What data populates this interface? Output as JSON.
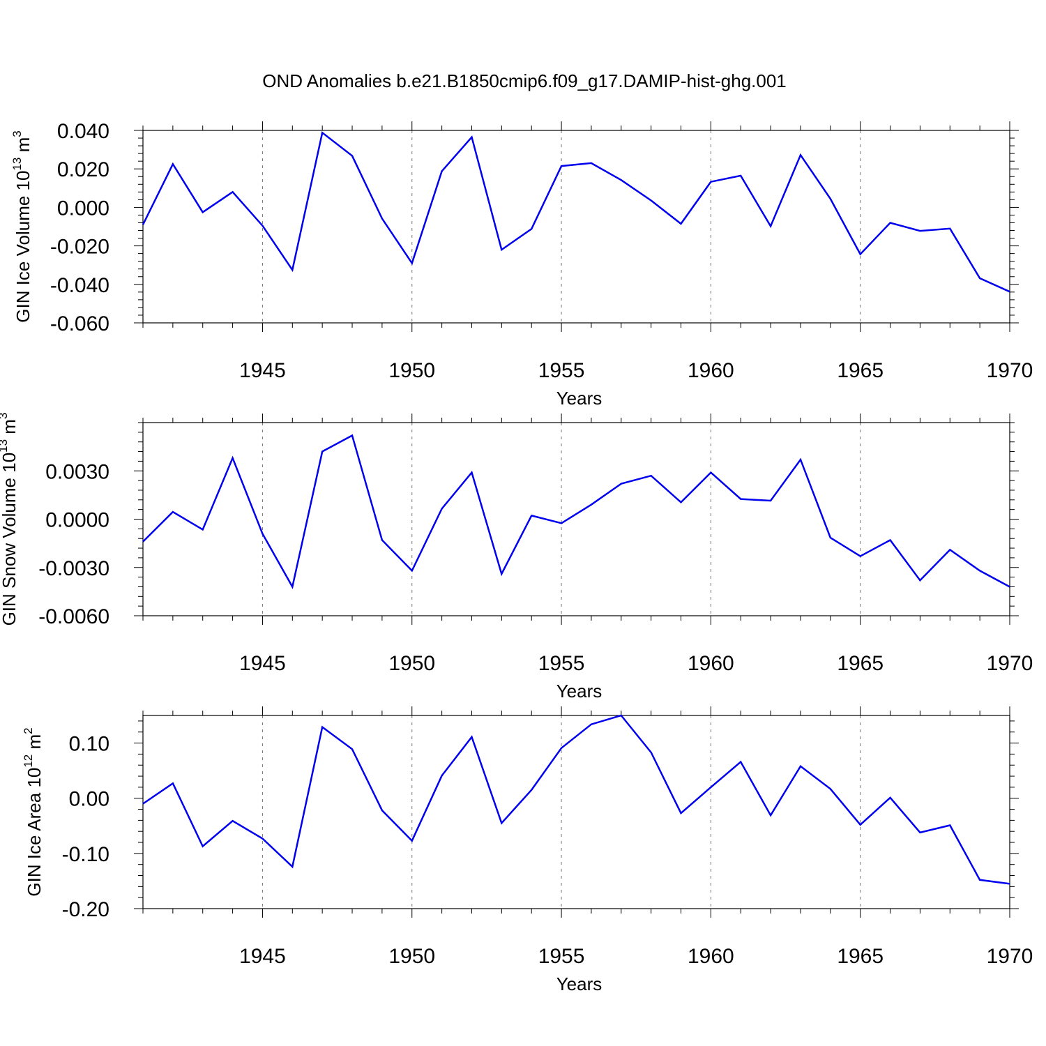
{
  "title": "OND Anomalies b.e21.B1850cmip6.f09_g17.DAMIP-hist-ghg.001",
  "colors": {
    "line": "#0000ee",
    "grid": "#777777",
    "axis": "#000000"
  },
  "chart_data": [
    {
      "type": "line",
      "ylabel": "GIN Ice Volume 10",
      "ylabel_sup": "13",
      "ylabel_unit": " m",
      "ylabel_unit_sup": "3",
      "xlabel": "Years",
      "xlim": [
        1941,
        1970
      ],
      "ylim": [
        -0.06,
        0.04
      ],
      "x_ticks": [
        1945,
        1950,
        1955,
        1960,
        1965,
        1970
      ],
      "y_ticks": [
        -0.06,
        -0.04,
        -0.02,
        0.0,
        0.02,
        0.04
      ],
      "y_tick_labels": [
        "-0.060",
        "-0.040",
        "-0.020",
        "0.000",
        "0.020",
        "0.040"
      ],
      "grid": "vertical dashed at major x ticks",
      "series": [
        {
          "x": [
            1941,
            1942,
            1943,
            1944,
            1945,
            1946,
            1947,
            1948,
            1949,
            1950,
            1951,
            1952,
            1953,
            1954,
            1955,
            1956,
            1957,
            1958,
            1959,
            1960,
            1961,
            1962,
            1963,
            1964,
            1965,
            1966,
            1967,
            1968,
            1969,
            1970
          ],
          "values": [
            -0.009,
            0.0225,
            -0.0025,
            0.008,
            -0.0095,
            -0.0325,
            0.0388,
            0.0268,
            -0.0058,
            -0.029,
            0.0188,
            0.0365,
            -0.022,
            -0.0112,
            0.0215,
            0.023,
            0.0142,
            0.0036,
            -0.0085,
            0.0133,
            0.0165,
            -0.0098,
            0.0272,
            0.0045,
            -0.0243,
            -0.008,
            -0.0122,
            -0.011,
            -0.0368,
            -0.0438
          ]
        }
      ]
    },
    {
      "type": "line",
      "ylabel": "GIN Snow Volume 10",
      "ylabel_sup": "13",
      "ylabel_unit": " m",
      "ylabel_unit_sup": "3",
      "xlabel": "Years",
      "xlim": [
        1941,
        1970
      ],
      "ylim": [
        -0.006,
        0.006
      ],
      "x_ticks": [
        1945,
        1950,
        1955,
        1960,
        1965,
        1970
      ],
      "y_ticks": [
        -0.006,
        -0.003,
        0.0,
        0.003
      ],
      "y_tick_labels": [
        "-0.0060",
        "-0.0030",
        "0.0000",
        "0.0030"
      ],
      "grid": "vertical dashed at major x ticks",
      "series": [
        {
          "x": [
            1941,
            1942,
            1943,
            1944,
            1945,
            1946,
            1947,
            1948,
            1949,
            1950,
            1951,
            1952,
            1953,
            1954,
            1955,
            1956,
            1957,
            1958,
            1959,
            1960,
            1961,
            1962,
            1963,
            1964,
            1965,
            1966,
            1967,
            1968,
            1969,
            1970
          ],
          "values": [
            -0.0014,
            0.00045,
            -0.00065,
            0.0038,
            -0.0009,
            -0.0042,
            0.0042,
            0.0052,
            -0.0013,
            -0.0032,
            0.00065,
            0.0029,
            -0.0034,
            0.00022,
            -0.00025,
            0.0009,
            0.0022,
            0.0027,
            0.00105,
            0.0029,
            0.00125,
            0.00115,
            0.0037,
            -0.00115,
            -0.0023,
            -0.0013,
            -0.0038,
            -0.0019,
            -0.0032,
            -0.0042
          ]
        }
      ]
    },
    {
      "type": "line",
      "ylabel": "GIN Ice Area 10",
      "ylabel_sup": "12",
      "ylabel_unit": " m",
      "ylabel_unit_sup": "2",
      "xlabel": "Years",
      "xlim": [
        1941,
        1970
      ],
      "ylim": [
        -0.2,
        0.15
      ],
      "x_ticks": [
        1945,
        1950,
        1955,
        1960,
        1965,
        1970
      ],
      "y_ticks": [
        -0.2,
        -0.1,
        0.0,
        0.1
      ],
      "y_tick_labels": [
        "-0.20",
        "-0.10",
        "0.00",
        "0.10"
      ],
      "grid": "vertical dashed at major x ticks",
      "series": [
        {
          "x": [
            1941,
            1942,
            1943,
            1944,
            1945,
            1946,
            1947,
            1948,
            1949,
            1950,
            1951,
            1952,
            1953,
            1954,
            1955,
            1956,
            1957,
            1958,
            1959,
            1960,
            1961,
            1962,
            1963,
            1964,
            1965,
            1966,
            1967,
            1968,
            1969,
            1970
          ],
          "values": [
            -0.01,
            0.027,
            -0.087,
            -0.041,
            -0.073,
            -0.124,
            0.129,
            0.089,
            -0.022,
            -0.077,
            0.041,
            0.111,
            -0.045,
            0.015,
            0.091,
            0.134,
            0.15,
            0.083,
            -0.027,
            0.02,
            0.066,
            -0.031,
            0.058,
            0.017,
            -0.048,
            0.001,
            -0.062,
            -0.049,
            -0.148,
            -0.155
          ]
        }
      ]
    }
  ]
}
